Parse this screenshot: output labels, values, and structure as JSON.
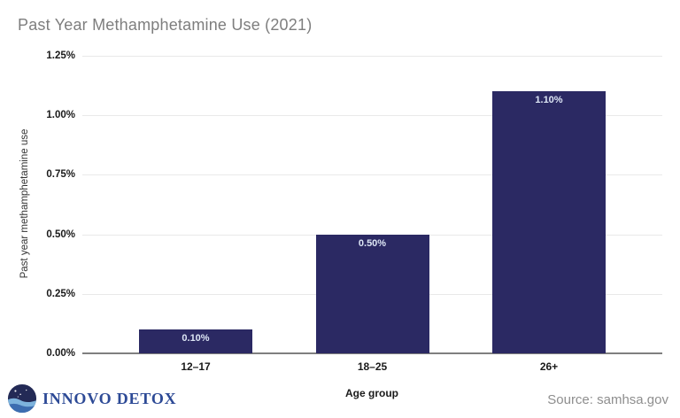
{
  "title": "Past Year Methamphetamine Use (2021)",
  "chart_data": {
    "type": "bar",
    "title": "Past Year Methamphetamine Use (2021)",
    "categories": [
      "12–17",
      "18–25",
      "26+"
    ],
    "values": [
      0.1,
      0.5,
      1.1
    ],
    "value_labels": [
      "0.10%",
      "0.50%",
      "1.10%"
    ],
    "xlabel": "Age group",
    "ylabel": "Past year methamphetamine use",
    "ylim": [
      0,
      1.25
    ],
    "ytick_values": [
      0,
      0.25,
      0.5,
      0.75,
      1.0,
      1.25
    ],
    "ytick_labels": [
      "0.00%",
      "0.25%",
      "0.50%",
      "0.75%",
      "1.00%",
      "1.25%"
    ],
    "grid": true,
    "legend": "none",
    "bar_color": "#2b2963",
    "bar_label_color": "#dde6f5"
  },
  "footer": {
    "brand": "INNOVO DETOX",
    "source": "Source: samhsa.gov"
  },
  "colors": {
    "title_gray": "#7e7e7e",
    "axis_text": "#1a1a1a",
    "gridline": "#e9e9e9",
    "zero_line": "#7f7f7f",
    "bar_navy": "#2b2963",
    "brand_blue": "#2d4a96",
    "logo_navy": "#232a56",
    "logo_wave_light": "#7db3dd",
    "logo_wave_dark": "#3c6db0",
    "source_gray": "#8e8e8e"
  }
}
